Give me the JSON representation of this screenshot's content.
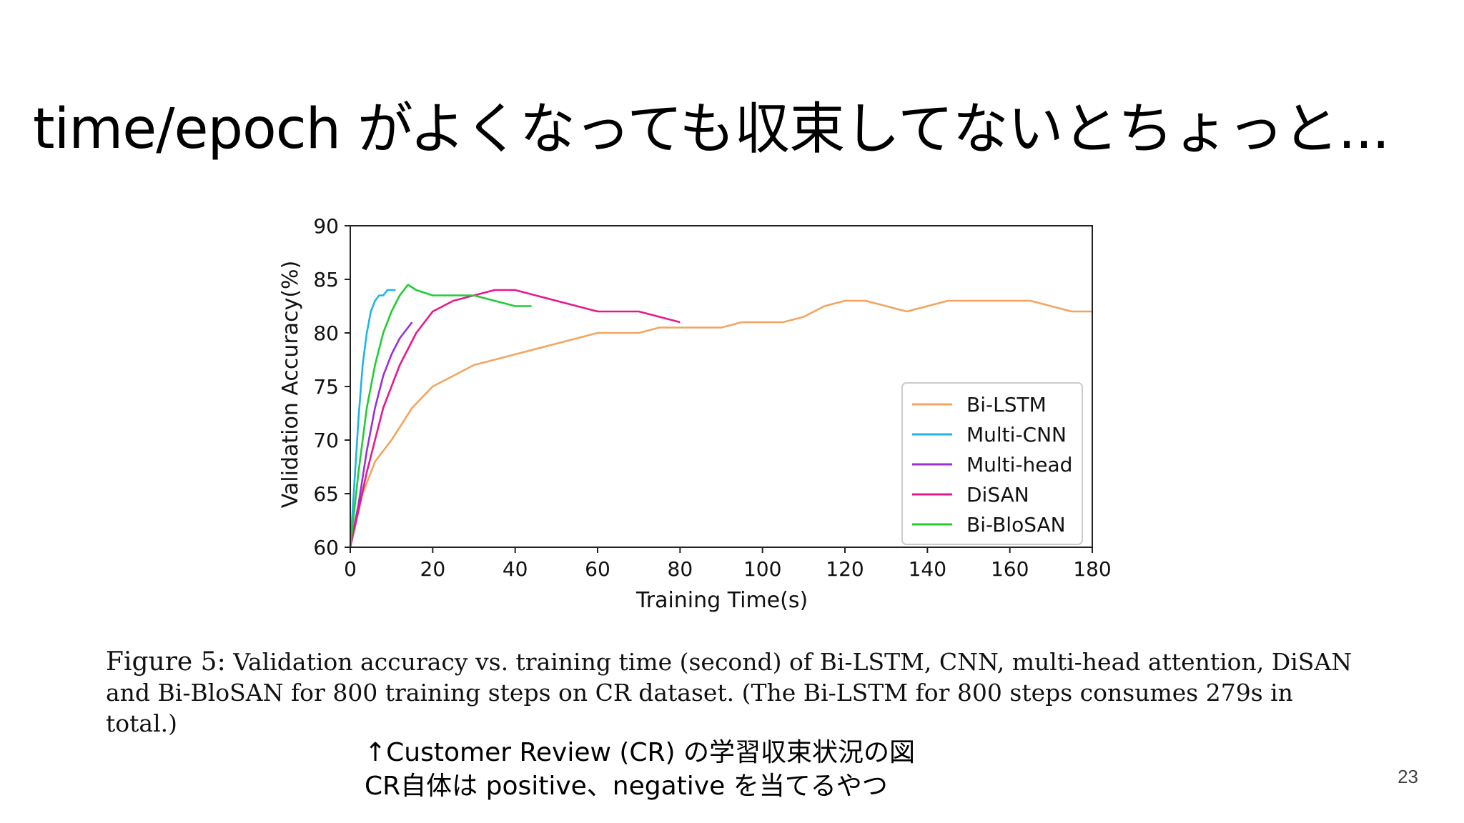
{
  "slide": {
    "title": "time/epoch がよくなっても収束してないとちょっと...",
    "page_number": "23"
  },
  "caption": {
    "label": "Figure 5:",
    "text": "Validation accuracy vs. training time (second) of Bi-LSTM, CNN, multi-head attention, DiSAN and Bi-BloSAN for 800 training steps on CR dataset. (The Bi-LSTM for 800 steps consumes 279s in total.)"
  },
  "note": {
    "line1": "↑Customer Review (CR) の学習収束状況の図",
    "line2": "CR自体は positive、negative を当てるやつ"
  },
  "chart_data": {
    "type": "line",
    "xlabel": "Training Time(s)",
    "ylabel": "Validation Accuracy(%)",
    "xlim": [
      0,
      180
    ],
    "ylim": [
      60,
      90
    ],
    "xticks": [
      0,
      20,
      40,
      60,
      80,
      100,
      120,
      140,
      160,
      180
    ],
    "yticks": [
      60,
      65,
      70,
      75,
      80,
      85,
      90
    ],
    "grid": false,
    "legend_position": "lower-right",
    "series": [
      {
        "name": "Bi-LSTM",
        "color": "#f4a460",
        "x": [
          0,
          3,
          6,
          10,
          15,
          20,
          25,
          30,
          35,
          40,
          45,
          50,
          55,
          60,
          65,
          70,
          75,
          80,
          85,
          90,
          95,
          100,
          105,
          110,
          115,
          120,
          125,
          130,
          135,
          140,
          145,
          150,
          155,
          160,
          165,
          170,
          175,
          180
        ],
        "y": [
          60,
          65,
          68,
          70,
          73,
          75,
          76,
          77,
          77.5,
          78,
          78.5,
          79,
          79.5,
          80,
          80,
          80,
          80.5,
          80.5,
          80.5,
          80.5,
          81,
          81,
          81,
          81.5,
          82.5,
          83,
          83,
          82.5,
          82,
          82.5,
          83,
          83,
          83,
          83,
          83,
          82.5,
          82,
          82
        ]
      },
      {
        "name": "Multi-CNN",
        "color": "#1fb4e8",
        "x": [
          0,
          1,
          2,
          3,
          4,
          5,
          6,
          7,
          8,
          9,
          10,
          11
        ],
        "y": [
          60,
          66,
          72,
          77,
          80,
          82,
          83,
          83.5,
          83.5,
          84,
          84,
          84
        ]
      },
      {
        "name": "Multi-head",
        "color": "#9b30d9",
        "x": [
          0,
          2,
          4,
          6,
          8,
          10,
          12,
          14,
          15
        ],
        "y": [
          60,
          64,
          69,
          73,
          76,
          78,
          79.5,
          80.5,
          81
        ]
      },
      {
        "name": "DiSAN",
        "color": "#e8188c",
        "x": [
          0,
          4,
          8,
          12,
          16,
          20,
          25,
          30,
          35,
          40,
          45,
          50,
          55,
          60,
          65,
          70,
          75,
          80
        ],
        "y": [
          60,
          67,
          73,
          77,
          80,
          82,
          83,
          83.5,
          84,
          84,
          83.5,
          83,
          82.5,
          82,
          82,
          82,
          81.5,
          81
        ]
      },
      {
        "name": "Bi-BloSAN",
        "color": "#22cc33",
        "x": [
          0,
          2,
          4,
          6,
          8,
          10,
          12,
          14,
          16,
          20,
          25,
          30,
          35,
          40,
          44
        ],
        "y": [
          60,
          67,
          73,
          77,
          80,
          82,
          83.5,
          84.5,
          84,
          83.5,
          83.5,
          83.5,
          83,
          82.5,
          82.5
        ]
      }
    ]
  }
}
